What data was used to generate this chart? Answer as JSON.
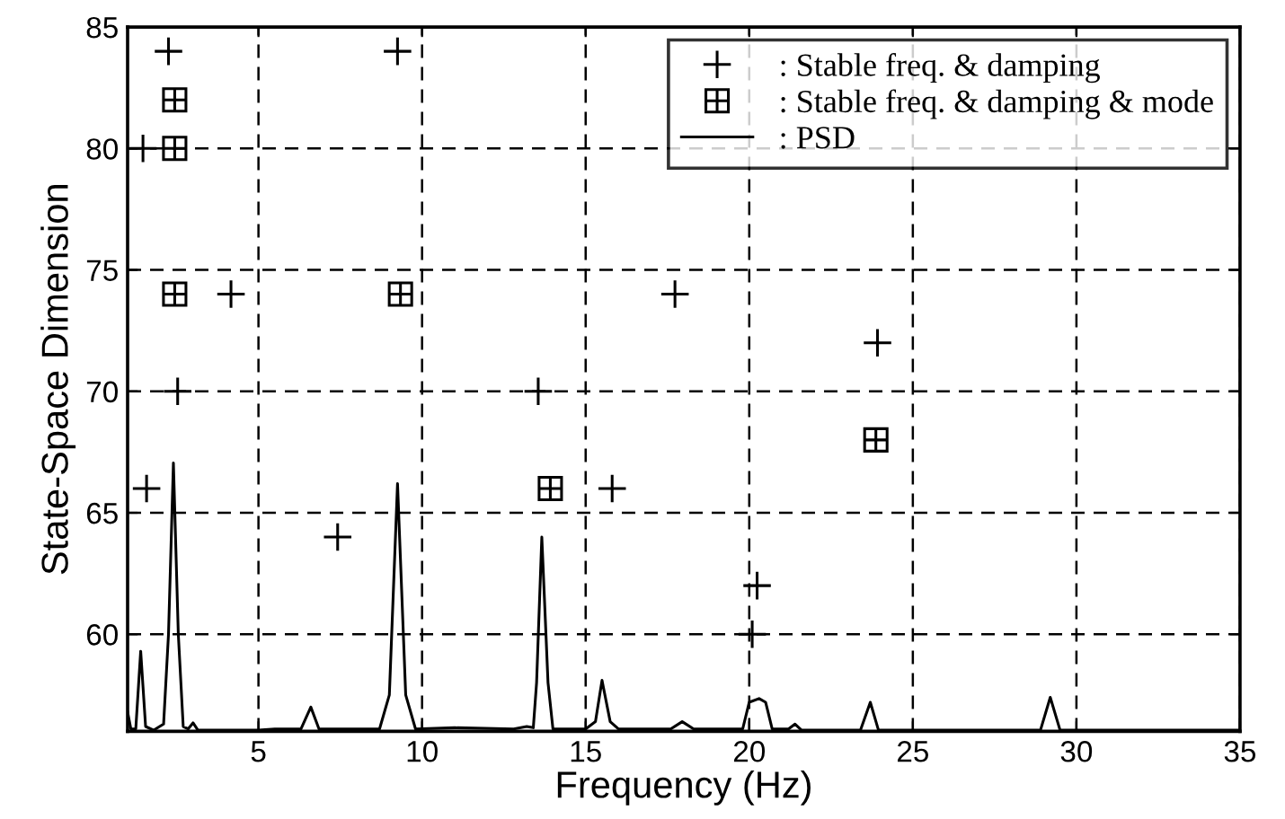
{
  "chart_data": {
    "type": "scatter",
    "xlabel": "Frequency (Hz)",
    "ylabel": "State-Space Dimension",
    "xlim": [
      1,
      35
    ],
    "ylim": [
      56,
      85
    ],
    "xticks": [
      5,
      10,
      15,
      20,
      25,
      30,
      35
    ],
    "yticks": [
      60,
      65,
      70,
      75,
      80,
      85
    ],
    "grid": true,
    "legend": "top right",
    "series": [
      {
        "name": ": Stable freq. & damping",
        "marker": "cross",
        "color": "#000000",
        "x": [
          2.25,
          1.47,
          4.16,
          9.25,
          2.53,
          13.55,
          1.58,
          7.42,
          15.81,
          20.24,
          20.09,
          17.73,
          23.92
        ],
        "values": [
          84,
          80,
          74,
          84,
          70,
          70,
          66,
          64,
          66,
          62,
          60,
          74,
          72
        ]
      },
      {
        "name": ": Stable freq. & damping & mode",
        "marker": "square",
        "color": "#000000",
        "x": [
          2.44,
          2.44,
          2.44,
          9.34,
          13.92,
          23.87
        ],
        "values": [
          82,
          80,
          74,
          74,
          66,
          68
        ]
      },
      {
        "name": ": PSD",
        "type": "line",
        "marker": "none",
        "line_style": "solid",
        "color": "#000000",
        "x": [
          1.0,
          1.1,
          1.25,
          1.4,
          1.55,
          1.8,
          2.1,
          2.25,
          2.4,
          2.55,
          2.7,
          2.85,
          3.0,
          3.15,
          5.0,
          5.5,
          6.3,
          6.6,
          6.85,
          8.7,
          9.0,
          9.25,
          9.5,
          9.8,
          11.0,
          12.8,
          13.2,
          13.4,
          13.5,
          13.66,
          13.85,
          14.0,
          15.0,
          15.3,
          15.5,
          15.75,
          16.0,
          17.6,
          17.95,
          18.3,
          19.8,
          20.0,
          20.3,
          20.5,
          20.7,
          21.2,
          21.4,
          21.6,
          23.4,
          23.7,
          23.95,
          28.9,
          29.2,
          29.5,
          35.0
        ],
        "values": [
          56.8,
          56.1,
          56.1,
          59.3,
          56.2,
          56.05,
          56.3,
          60,
          67.05,
          60,
          56.2,
          56.1,
          56.35,
          56.05,
          56.05,
          56.1,
          56.1,
          57.0,
          56.1,
          56.1,
          57.5,
          66.2,
          57.5,
          56.1,
          56.15,
          56.1,
          56.2,
          56.15,
          58,
          64.0,
          58,
          56.1,
          56.1,
          56.4,
          58.1,
          56.4,
          56.1,
          56.1,
          56.4,
          56.1,
          56.1,
          57.2,
          57.35,
          57.2,
          56.1,
          56.1,
          56.3,
          56.05,
          56.05,
          57.2,
          56.05,
          56.05,
          57.4,
          56.05,
          56.05
        ]
      }
    ]
  }
}
